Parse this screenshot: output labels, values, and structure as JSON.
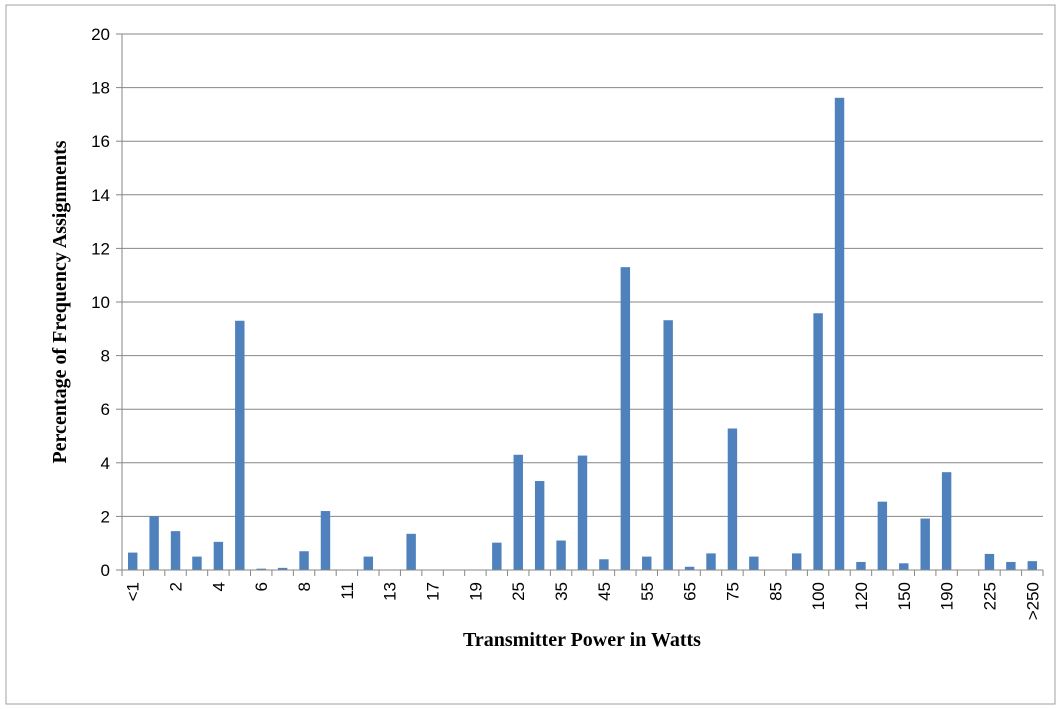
{
  "chart_data": {
    "type": "bar",
    "categories": [
      "<1",
      null,
      "2",
      null,
      "4",
      null,
      "6",
      null,
      "8",
      null,
      "11",
      null,
      "13",
      null,
      "17",
      null,
      "19",
      null,
      "25",
      null,
      "35",
      null,
      "45",
      null,
      "55",
      null,
      "65",
      null,
      "75",
      null,
      "85",
      null,
      "100",
      null,
      "120",
      null,
      "150",
      null,
      "190",
      null,
      "225",
      null,
      ">250"
    ],
    "values": [
      0.65,
      2.0,
      1.45,
      0.5,
      1.05,
      9.3,
      0.05,
      0.08,
      0.7,
      2.2,
      0,
      0.5,
      0,
      1.35,
      0,
      0,
      0,
      1.02,
      4.3,
      3.32,
      1.1,
      4.27,
      0.4,
      11.3,
      0.5,
      9.32,
      0.12,
      0.62,
      5.28,
      0.5,
      0,
      0.62,
      9.58,
      17.62,
      0.3,
      2.55,
      0.25,
      1.92,
      3.65,
      0,
      0.6,
      0.3,
      0.33
    ],
    "color": "#4f81bd",
    "xlabel": "Transmitter Power in Watts",
    "ylabel": "Percentage of Frequency Assignments",
    "ylim": [
      0,
      20
    ],
    "yticks": [
      0,
      2,
      4,
      6,
      8,
      10,
      12,
      14,
      16,
      18,
      20
    ],
    "grid": true
  }
}
